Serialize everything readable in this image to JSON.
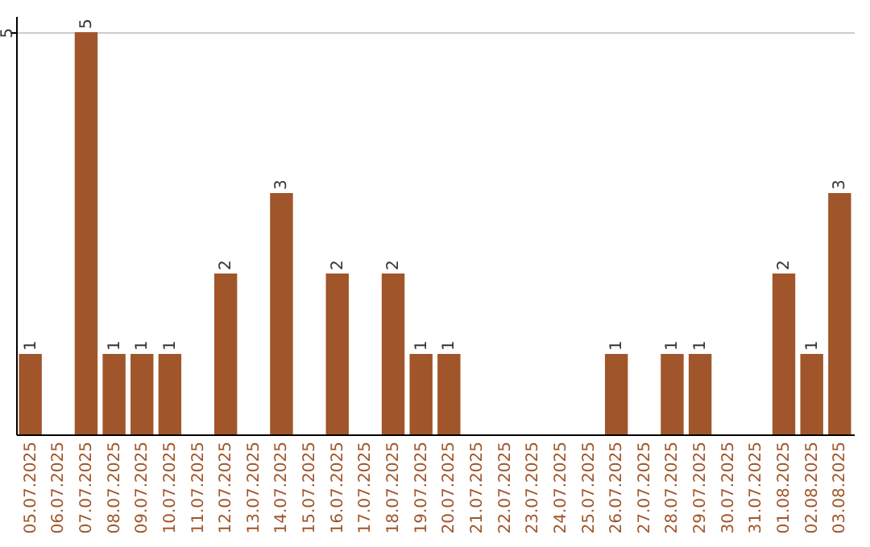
{
  "chart_data": {
    "type": "bar",
    "categories": [
      "05.07.2025",
      "06.07.2025",
      "07.07.2025",
      "08.07.2025",
      "09.07.2025",
      "10.07.2025",
      "11.07.2025",
      "12.07.2025",
      "13.07.2025",
      "14.07.2025",
      "15.07.2025",
      "16.07.2025",
      "17.07.2025",
      "18.07.2025",
      "19.07.2025",
      "20.07.2025",
      "21.07.2025",
      "22.07.2025",
      "23.07.2025",
      "24.07.2025",
      "25.07.2025",
      "26.07.2025",
      "27.07.2025",
      "28.07.2025",
      "29.07.2025",
      "30.07.2025",
      "31.07.2025",
      "01.08.2025",
      "02.08.2025",
      "03.08.2025"
    ],
    "values": [
      1,
      0,
      5,
      1,
      1,
      1,
      0,
      2,
      0,
      3,
      0,
      2,
      0,
      2,
      1,
      1,
      0,
      0,
      0,
      0,
      0,
      1,
      0,
      1,
      1,
      0,
      0,
      2,
      1,
      3
    ],
    "value_labels": [
      "1",
      null,
      "5",
      "1",
      "1",
      "1",
      null,
      "2",
      null,
      "3",
      null,
      "2",
      null,
      "2",
      "1",
      "1",
      null,
      null,
      null,
      null,
      null,
      "1",
      null,
      "1",
      "1",
      null,
      null,
      "2",
      "1",
      "3"
    ],
    "color": "#a0562a",
    "ylim": [
      0,
      5.2
    ],
    "yticks": [
      5
    ],
    "grid": "y"
  }
}
